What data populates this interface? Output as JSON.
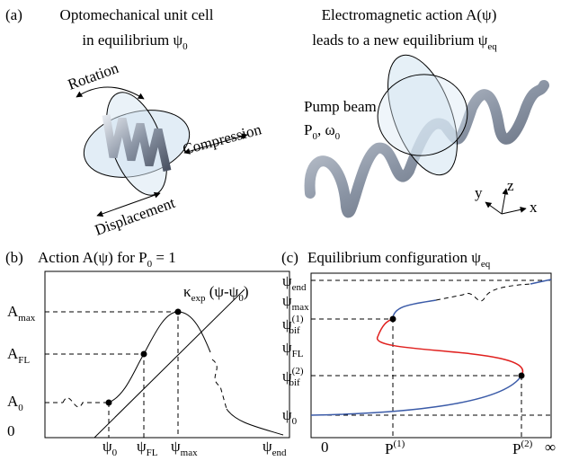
{
  "panel_a": {
    "label": "(a)",
    "left_title": [
      "Optomechanical unit cell",
      {
        "base": "in equilibrium ψ",
        "sub": "0"
      }
    ],
    "right_title": [
      "Electromagnetic action A(ψ)",
      {
        "base": "leads to a new equilibrium ψ",
        "sub": "eq"
      }
    ],
    "rotation": "Rotation",
    "compression": "Compression",
    "displacement": "Displacement",
    "pump_beam": "Pump beam",
    "pump_power": {
      "base": "P",
      "sub": "0"
    },
    "pump_freq": {
      "base": ", ω",
      "sub": "0"
    },
    "axes": [
      "x",
      "y",
      "z"
    ]
  },
  "panel_b": {
    "label": "(b)",
    "title": {
      "base": "Action A(ψ) for P",
      "sub": "0",
      "rest": " = 1"
    },
    "kappa": {
      "base": "κ",
      "sub": "exp",
      "rest": " (ψ-ψ"
    },
    "kappa_sub": "0",
    "kappa_end": ")",
    "y_labels": [
      {
        "base": "A",
        "sub": "max"
      },
      {
        "base": "A",
        "sub": "FL"
      },
      {
        "base": "A",
        "sub": "0"
      },
      {
        "base": "0"
      }
    ],
    "x_labels": [
      {
        "base": "ψ",
        "sub": "0"
      },
      {
        "base": "ψ",
        "sub": "FL"
      },
      {
        "base": "ψ",
        "sub": "max"
      },
      {
        "base": "ψ",
        "sub": "end"
      }
    ]
  },
  "panel_c": {
    "label": "(c)",
    "title": {
      "base": "Equilibrium configuration ψ",
      "sub": "eq"
    },
    "y_labels": [
      {
        "base": "ψ",
        "sub": "end"
      },
      {
        "base": "ψ",
        "sub": "max"
      },
      {
        "base": "ψ",
        "sup": "(1)",
        "sub": "bif"
      },
      {
        "base": "ψ",
        "sub": "FL"
      },
      {
        "base": "ψ",
        "sup": "(2)",
        "sub": "bif"
      },
      {
        "base": "ψ",
        "sub": "0"
      }
    ],
    "x_labels": [
      {
        "base": "0"
      },
      {
        "base": "P",
        "sup": "(1)"
      },
      {
        "base": "P",
        "sup": "(2)"
      },
      {
        "base": "∞"
      }
    ]
  }
}
